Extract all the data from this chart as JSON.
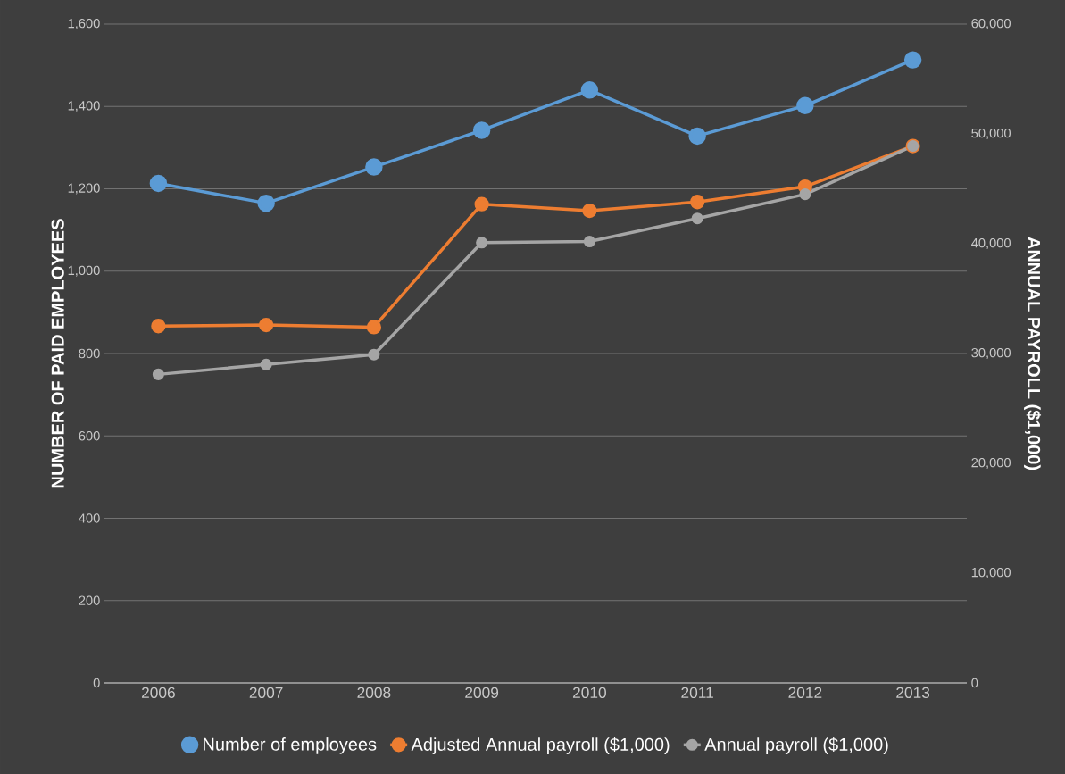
{
  "chart_data": {
    "type": "line",
    "categories": [
      "2006",
      "2007",
      "2008",
      "2009",
      "2010",
      "2011",
      "2012",
      "2013"
    ],
    "series": [
      {
        "name": "Number of employees",
        "color": "#5b9bd5",
        "values": [
          1213,
          1165,
          1253,
          1342,
          1440,
          1328,
          1402,
          1513
        ]
      },
      {
        "name": "Adjusted Annual payroll ($1,000)",
        "color": "#ed7d31",
        "axis": "y2",
        "values": [
          32500,
          32600,
          32400,
          43600,
          43000,
          43800,
          45200,
          48900
        ]
      },
      {
        "name": "Annual payroll ($1,000)",
        "color": "#a5a5a5",
        "axis": "y2",
        "values": [
          28100,
          29000,
          29900,
          40100,
          40200,
          42300,
          44500,
          48900
        ]
      }
    ],
    "ylabel": "NUMBER OF PAID EMPLOYEES",
    "y2label": "ANNUAL PAYROLL ($1,000)",
    "ylim": [
      0,
      1600
    ],
    "yticks": [
      0,
      200,
      400,
      600,
      800,
      {
        "value": 1000,
        "label": "1,000"
      },
      {
        "value": 1200,
        "label": "1,200"
      },
      {
        "value": 1400,
        "label": "1,400"
      },
      {
        "value": 1600,
        "label": "1,600"
      }
    ],
    "y2lim": [
      0,
      60000
    ],
    "y2ticks": [
      0,
      {
        "value": 10000,
        "label": "10,000"
      },
      {
        "value": 20000,
        "label": "20,000"
      },
      {
        "value": 30000,
        "label": "30,000"
      },
      {
        "value": 40000,
        "label": "40,000"
      },
      {
        "value": 50000,
        "label": "50,000"
      },
      {
        "value": 60000,
        "label": "60,000"
      }
    ],
    "grid": "y",
    "legend": "bottom",
    "marker": "circle",
    "line_style": "solid"
  }
}
